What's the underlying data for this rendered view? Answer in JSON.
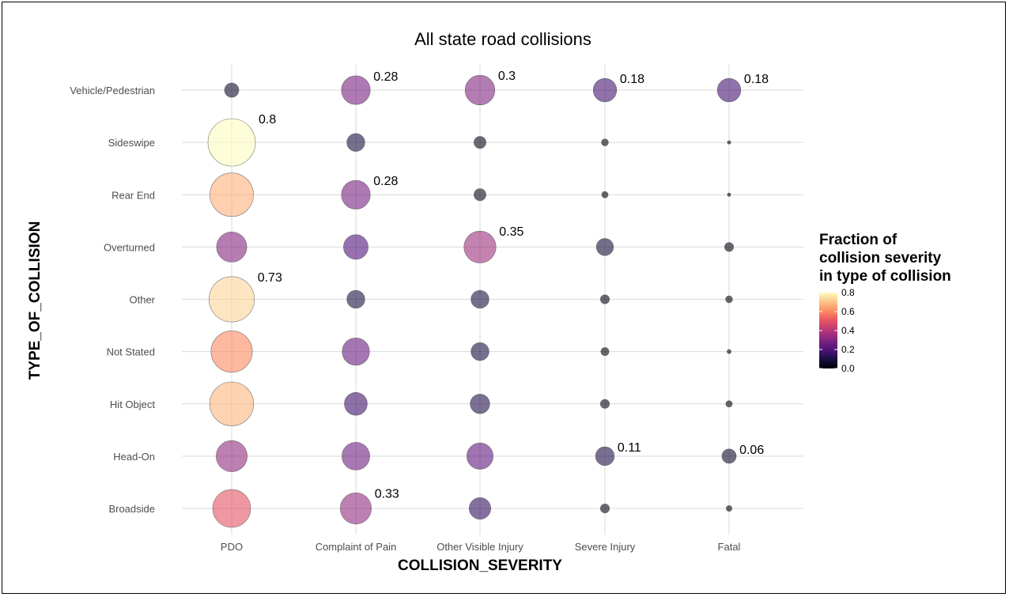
{
  "chart_data": {
    "type": "scatter",
    "title": "All state road collisions",
    "xlabel": "COLLISION_SEVERITY",
    "ylabel": "TYPE_OF_COLLISION",
    "x_categories": [
      "PDO",
      "Complaint of Pain",
      "Other Visible Injury",
      "Severe Injury",
      "Fatal"
    ],
    "y_categories": [
      "Broadside",
      "Head-On",
      "Hit Object",
      "Not Stated",
      "Other",
      "Overturned",
      "Rear End",
      "Sideswipe",
      "Vehicle/Pedestrian"
    ],
    "size_and_color": "fraction",
    "points": [
      {
        "type": "Vehicle/Pedestrian",
        "severity": "PDO",
        "fraction": 0.06
      },
      {
        "type": "Vehicle/Pedestrian",
        "severity": "Complaint of Pain",
        "fraction": 0.28,
        "label": "0.28"
      },
      {
        "type": "Vehicle/Pedestrian",
        "severity": "Other Visible Injury",
        "fraction": 0.3,
        "label": "0.3"
      },
      {
        "type": "Vehicle/Pedestrian",
        "severity": "Severe Injury",
        "fraction": 0.18,
        "label": "0.18"
      },
      {
        "type": "Vehicle/Pedestrian",
        "severity": "Fatal",
        "fraction": 0.18,
        "label": "0.18"
      },
      {
        "type": "Sideswipe",
        "severity": "PDO",
        "fraction": 0.8,
        "label": "0.8"
      },
      {
        "type": "Sideswipe",
        "severity": "Complaint of Pain",
        "fraction": 0.1
      },
      {
        "type": "Sideswipe",
        "severity": "Other Visible Injury",
        "fraction": 0.04
      },
      {
        "type": "Sideswipe",
        "severity": "Severe Injury",
        "fraction": 0.01
      },
      {
        "type": "Sideswipe",
        "severity": "Fatal",
        "fraction": 0.001
      },
      {
        "type": "Rear End",
        "severity": "PDO",
        "fraction": 0.67
      },
      {
        "type": "Rear End",
        "severity": "Complaint of Pain",
        "fraction": 0.28,
        "label": "0.28"
      },
      {
        "type": "Rear End",
        "severity": "Other Visible Injury",
        "fraction": 0.04
      },
      {
        "type": "Rear End",
        "severity": "Severe Injury",
        "fraction": 0.008
      },
      {
        "type": "Rear End",
        "severity": "Fatal",
        "fraction": 0.001
      },
      {
        "type": "Overturned",
        "severity": "PDO",
        "fraction": 0.31
      },
      {
        "type": "Overturned",
        "severity": "Complaint of Pain",
        "fraction": 0.2
      },
      {
        "type": "Overturned",
        "severity": "Other Visible Injury",
        "fraction": 0.35,
        "label": "0.35"
      },
      {
        "type": "Overturned",
        "severity": "Severe Injury",
        "fraction": 0.09
      },
      {
        "type": "Overturned",
        "severity": "Fatal",
        "fraction": 0.02
      },
      {
        "type": "Other",
        "severity": "PDO",
        "fraction": 0.73,
        "label": "0.73"
      },
      {
        "type": "Other",
        "severity": "Complaint of Pain",
        "fraction": 0.1
      },
      {
        "type": "Other",
        "severity": "Other Visible Injury",
        "fraction": 0.1
      },
      {
        "type": "Other",
        "severity": "Severe Injury",
        "fraction": 0.02
      },
      {
        "type": "Other",
        "severity": "Fatal",
        "fraction": 0.01
      },
      {
        "type": "Not Stated",
        "severity": "PDO",
        "fraction": 0.6
      },
      {
        "type": "Not Stated",
        "severity": "Complaint of Pain",
        "fraction": 0.25
      },
      {
        "type": "Not Stated",
        "severity": "Other Visible Injury",
        "fraction": 0.1
      },
      {
        "type": "Not Stated",
        "severity": "Severe Injury",
        "fraction": 0.015
      },
      {
        "type": "Not Stated",
        "severity": "Fatal",
        "fraction": 0.002
      },
      {
        "type": "Hit Object",
        "severity": "PDO",
        "fraction": 0.68
      },
      {
        "type": "Hit Object",
        "severity": "Complaint of Pain",
        "fraction": 0.17
      },
      {
        "type": "Hit Object",
        "severity": "Other Visible Injury",
        "fraction": 0.12
      },
      {
        "type": "Hit Object",
        "severity": "Severe Injury",
        "fraction": 0.02
      },
      {
        "type": "Hit Object",
        "severity": "Fatal",
        "fraction": 0.008
      },
      {
        "type": "Head-On",
        "severity": "PDO",
        "fraction": 0.33
      },
      {
        "type": "Head-On",
        "severity": "Complaint of Pain",
        "fraction": 0.26
      },
      {
        "type": "Head-On",
        "severity": "Other Visible Injury",
        "fraction": 0.23
      },
      {
        "type": "Head-On",
        "severity": "Severe Injury",
        "fraction": 0.11,
        "label": "0.11"
      },
      {
        "type": "Head-On",
        "severity": "Fatal",
        "fraction": 0.06,
        "label": "0.06"
      },
      {
        "type": "Broadside",
        "severity": "PDO",
        "fraction": 0.5
      },
      {
        "type": "Broadside",
        "severity": "Complaint of Pain",
        "fraction": 0.33,
        "label": "0.33"
      },
      {
        "type": "Broadside",
        "severity": "Other Visible Injury",
        "fraction": 0.15
      },
      {
        "type": "Broadside",
        "severity": "Severe Injury",
        "fraction": 0.02
      },
      {
        "type": "Broadside",
        "severity": "Fatal",
        "fraction": 0.006
      }
    ],
    "legend": {
      "title_lines": [
        "Fraction of",
        "collision severity",
        "in type of collision"
      ],
      "ticks": [
        "0.0",
        "0.2",
        "0.4",
        "0.6",
        "0.8"
      ],
      "range": [
        0,
        0.8
      ],
      "colormap": "magma"
    },
    "grid": true,
    "legend_position": "right"
  }
}
